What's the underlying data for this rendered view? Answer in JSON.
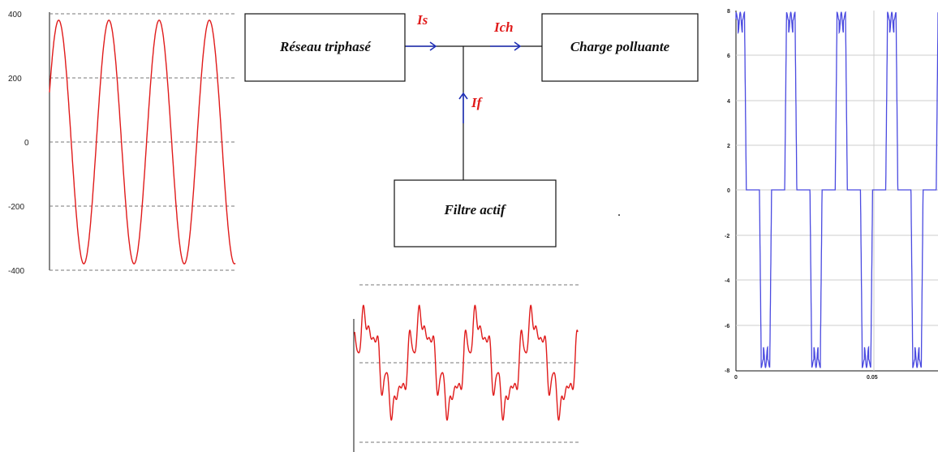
{
  "diagram": {
    "boxes": {
      "grid": "Réseau triphasé",
      "load": "Charge polluante",
      "filter": "Filtre actif"
    },
    "currents": {
      "source": "Is",
      "load": "Ich",
      "filter": "If"
    },
    "colors": {
      "line": "#111111",
      "arrow": "#1f2fb5",
      "label": "#e01b1b"
    }
  },
  "chart_data": [
    {
      "type": "line",
      "yticks": [
        "400",
        "200",
        "0",
        "-200",
        "-400"
      ],
      "ylim": [
        -400,
        400
      ],
      "grid": "dashed horizontal",
      "series": [
        {
          "color": "#e01b1b",
          "amplitude": 380,
          "periods": 3.7
        }
      ]
    },
    {
      "type": "line",
      "yticks": [],
      "grid": "dashed horizontal",
      "series": [
        {
          "color": "#e01b1b",
          "waveform": "distorted sine with harmonics",
          "periods": 4
        }
      ]
    },
    {
      "type": "line",
      "yticks": [
        "8",
        "6",
        "4",
        "2",
        "0",
        "-2",
        "-4",
        "-6",
        "-8"
      ],
      "xticks": [
        "0",
        "0.05"
      ],
      "ylim": [
        -8,
        8
      ],
      "grid": "solid horizontal",
      "series": [
        {
          "color": "#4a4ae0",
          "waveform": "quasi-square with notches",
          "periods": 4
        }
      ]
    }
  ]
}
